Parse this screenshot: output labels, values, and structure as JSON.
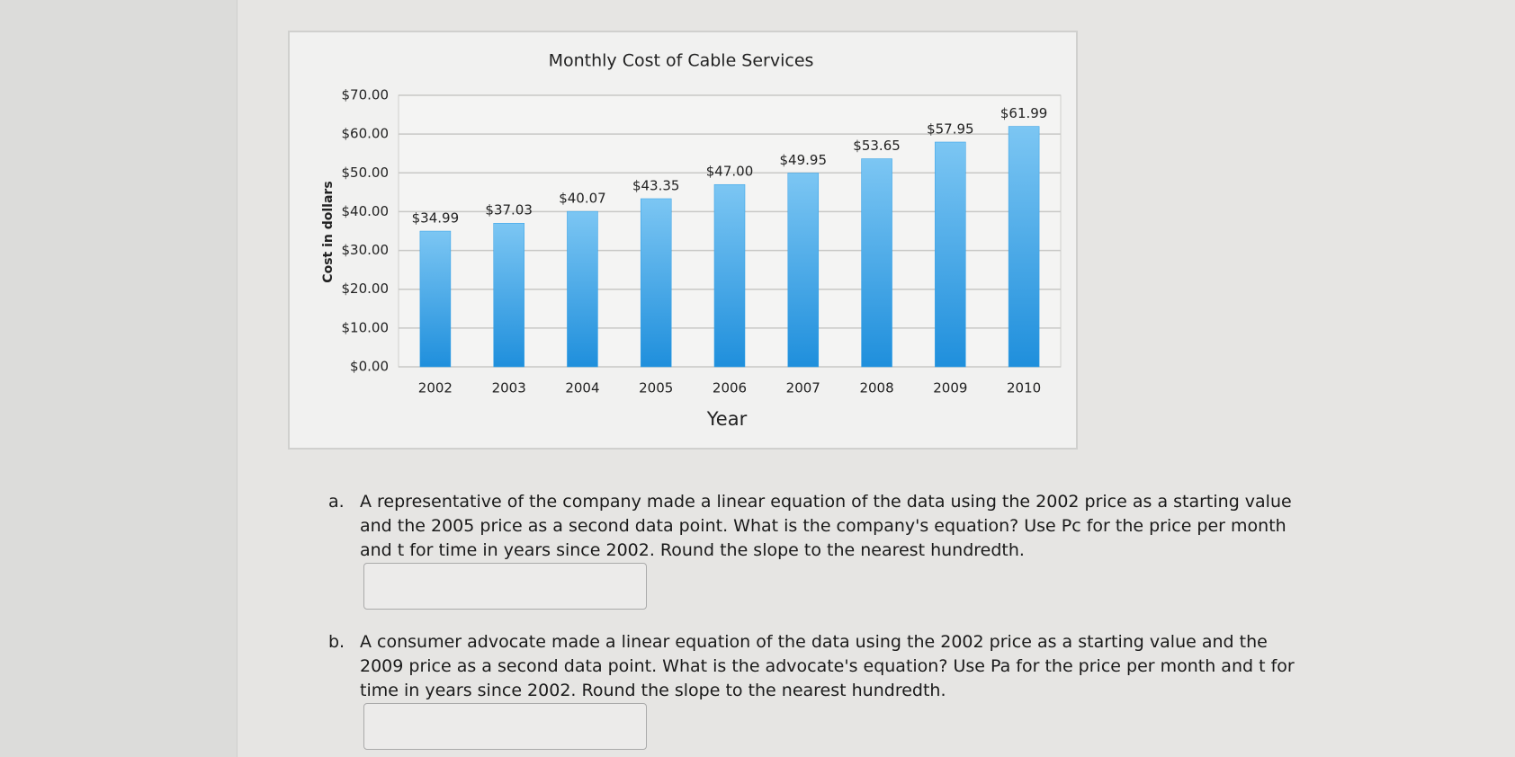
{
  "chart_data": {
    "type": "bar",
    "title": "Monthly Cost of Cable Services",
    "x_label": "Year",
    "y_label": "Cost in dollars",
    "categories": [
      "2002",
      "2003",
      "2004",
      "2005",
      "2006",
      "2007",
      "2008",
      "2009",
      "2010"
    ],
    "values": [
      34.99,
      37.03,
      40.07,
      43.35,
      47.0,
      49.95,
      53.65,
      57.95,
      61.99
    ],
    "value_labels": [
      "$34.99",
      "$37.03",
      "$40.07",
      "$43.35",
      "$47.00",
      "$49.95",
      "$53.65",
      "$57.95",
      "$61.99"
    ],
    "color": "#2f9ee6",
    "ylim": [
      0,
      70
    ],
    "yticks": [
      {
        "value": 0,
        "label": "$0.00"
      },
      {
        "value": 10,
        "label": "$10.00"
      },
      {
        "value": 20,
        "label": "$20.00"
      },
      {
        "value": 30,
        "label": "$30.00"
      },
      {
        "value": 40,
        "label": "$40.00"
      },
      {
        "value": 50,
        "label": "$50.00"
      },
      {
        "value": 60,
        "label": "$60.00"
      },
      {
        "value": 70,
        "label": "$70.00"
      }
    ],
    "grid": true
  },
  "questions": [
    {
      "label": "a.",
      "text": "A representative of the company made a linear equation of the data using the 2002 price as a starting value and the 2005 price as a second data point. What is the company's equation? Use Pc for the price per month and t for time in years since 2002. Round the slope to the nearest hundredth."
    },
    {
      "label": "b.",
      "text": "A consumer advocate made a linear equation of the data using the 2002 price as a starting value and the 2009 price as a second data point. What is the advocate's equation? Use Pa for the price per month and t for time in years since 2002. Round the slope to the nearest hundredth."
    }
  ]
}
